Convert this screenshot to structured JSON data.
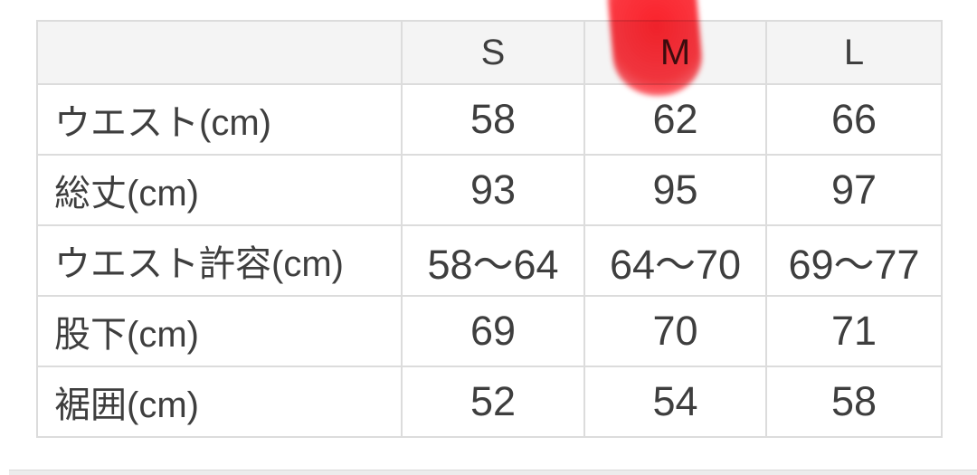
{
  "chart_data": {
    "type": "table",
    "title": "",
    "columns": [
      "",
      "S",
      "M",
      "L"
    ],
    "rows": [
      {
        "label": "ウエスト(cm)",
        "values": [
          "58",
          "62",
          "66"
        ]
      },
      {
        "label": "総丈(cm)",
        "values": [
          "93",
          "95",
          "97"
        ]
      },
      {
        "label": "ウエスト許容(cm)",
        "values": [
          "58〜64",
          "64〜70",
          "69〜77"
        ]
      },
      {
        "label": "股下(cm)",
        "values": [
          "69",
          "70",
          "71"
        ]
      },
      {
        "label": "裾囲(cm)",
        "values": [
          "52",
          "54",
          "58"
        ]
      }
    ],
    "layout": {
      "header_background": "#f4f4f4",
      "body_background": "#ffffff",
      "border_color": "#dcdcdc",
      "text_color": "#3e3e3e",
      "grid": true
    }
  },
  "annotation": {
    "type": "hand-drawn marker stroke",
    "highlighted_column": "M",
    "marker_color": "#fa1e28"
  }
}
